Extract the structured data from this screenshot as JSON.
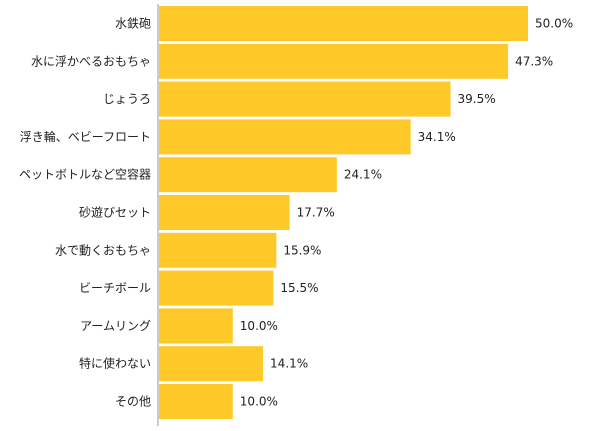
{
  "chart_data": {
    "type": "bar",
    "orientation": "horizontal",
    "categories": [
      "水鉄砲",
      "水に浮かべるおもちゃ",
      "じょうろ",
      "浮き輪、ベビーフロート",
      "ペットボトルなど空容器",
      "砂遊びセット",
      "水で動くおもちゃ",
      "ビーチボール",
      "アームリング",
      "特に使わない",
      "その他"
    ],
    "values": [
      50.0,
      47.3,
      39.5,
      34.1,
      24.1,
      17.7,
      15.9,
      15.5,
      10.0,
      14.1,
      10.0
    ],
    "value_labels": [
      "50.0%",
      "47.3%",
      "39.5%",
      "34.1%",
      "24.1%",
      "17.7%",
      "15.9%",
      "15.5%",
      "10.0%",
      "14.1%",
      "10.0%"
    ],
    "xlim": [
      0,
      50
    ],
    "bar_color": "#FFC929",
    "axis_color": "#999999",
    "grid": false,
    "legend": "none"
  }
}
